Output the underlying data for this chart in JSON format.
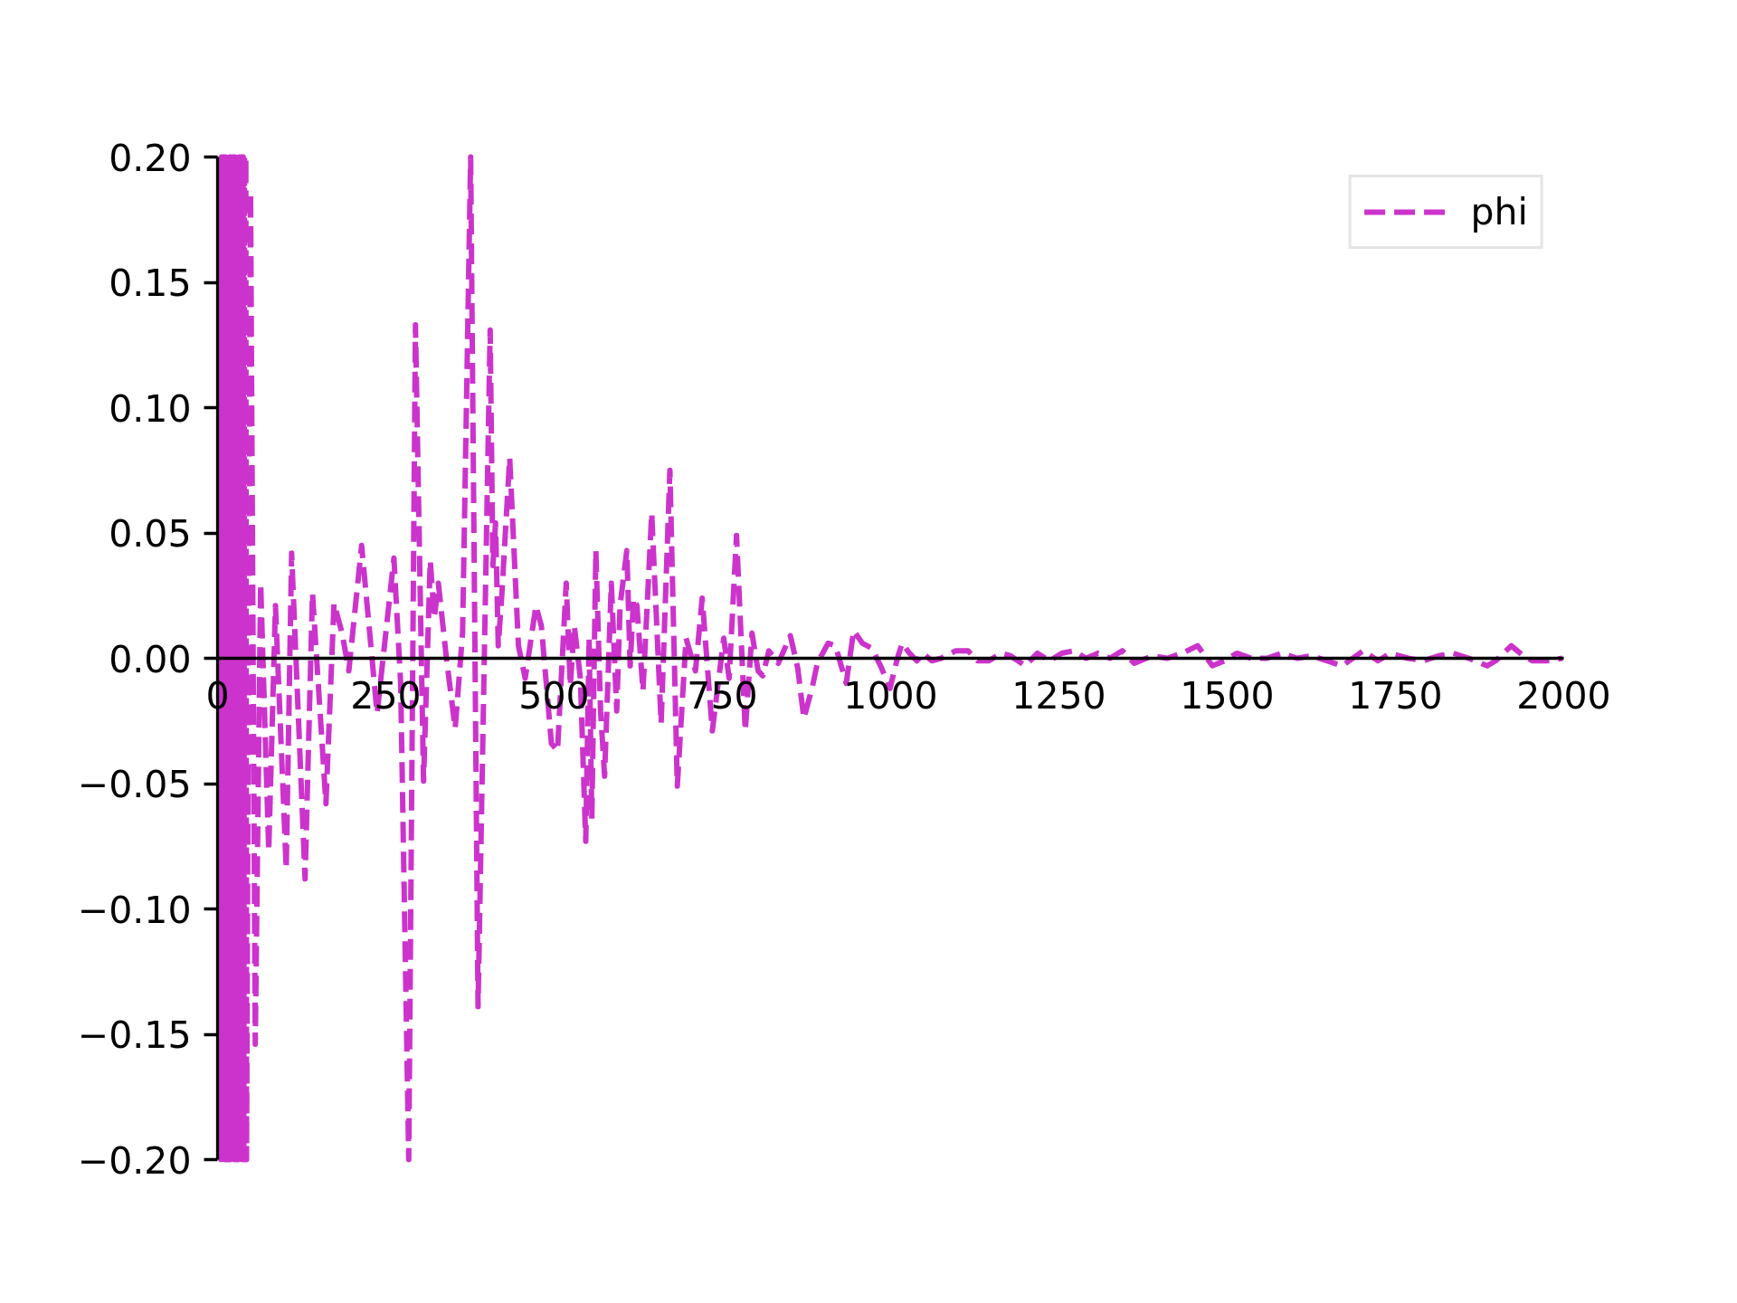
{
  "chart_data": {
    "type": "line",
    "x": [
      4,
      5,
      6,
      7,
      8,
      9,
      10,
      11,
      12,
      13,
      14,
      15,
      16,
      17,
      18,
      19,
      20,
      21,
      22,
      23,
      24,
      25,
      26,
      27,
      28,
      29,
      30,
      31,
      32,
      33,
      34,
      35,
      36,
      37,
      38,
      39,
      40,
      41,
      42,
      43,
      49,
      56,
      64,
      76,
      86,
      102,
      110,
      130,
      141,
      161,
      173,
      185,
      195,
      214,
      237,
      262,
      272,
      284,
      294,
      306,
      316,
      322,
      328,
      340,
      353,
      364,
      376,
      387,
      405,
      409,
      413,
      417,
      422,
      434,
      447,
      457,
      473,
      481,
      496,
      505,
      518,
      524,
      530,
      539,
      547,
      552,
      556,
      562,
      569,
      575,
      585,
      593,
      598,
      608,
      613,
      618,
      623,
      632,
      645,
      659,
      672,
      683,
      696,
      710,
      720,
      735,
      752,
      760,
      771,
      784,
      794,
      803,
      810,
      819,
      833,
      851,
      862,
      871,
      884,
      891,
      907,
      918,
      934,
      945,
      958,
      972,
      985,
      999,
      1010,
      1017,
      1028,
      1039,
      1048,
      1061,
      1075,
      1097,
      1115,
      1129,
      1146,
      1164,
      1178,
      1200,
      1218,
      1236,
      1254,
      1272,
      1290,
      1308,
      1326,
      1344,
      1362,
      1389,
      1411,
      1433,
      1456,
      1478,
      1496,
      1514,
      1536,
      1559,
      1581,
      1604,
      1626,
      1648,
      1671,
      1702,
      1724,
      1742,
      1769,
      1792,
      1814,
      1836,
      1859,
      1886,
      1899,
      1922,
      1940,
      1953,
      1975,
      1998
    ],
    "series": [
      {
        "name": "phi",
        "color": "#cc33cc",
        "values": [
          0.2,
          -0.2,
          0.2,
          -0.2,
          0.2,
          -0.2,
          0.2,
          -0.2,
          0.2,
          -0.2,
          0.2,
          -0.2,
          0.2,
          -0.2,
          0.2,
          -0.2,
          0.2,
          -0.2,
          0.2,
          -0.2,
          0.2,
          -0.2,
          0.2,
          -0.2,
          0.2,
          -0.2,
          0.2,
          -0.2,
          0.2,
          -0.2,
          0.2,
          -0.2,
          0.2,
          -0.2,
          0.2,
          -0.2,
          0.2,
          -0.2,
          0.2,
          -0.2,
          0.186,
          -0.154,
          0.03,
          -0.077,
          0.021,
          -0.084,
          0.042,
          -0.088,
          0.026,
          -0.058,
          0.022,
          0.01,
          -0.005,
          0.045,
          -0.022,
          0.04,
          -0.01,
          -0.2,
          0.133,
          -0.049,
          0.039,
          0.016,
          0.03,
          0.0,
          -0.028,
          0.01,
          0.2,
          -0.139,
          0.131,
          0.037,
          0.054,
          0.005,
          0.024,
          0.08,
          0.005,
          -0.008,
          0.021,
          0.013,
          -0.034,
          -0.037,
          0.03,
          -0.011,
          0.013,
          -0.008,
          -0.073,
          0.008,
          -0.064,
          0.043,
          -0.021,
          -0.047,
          0.03,
          -0.021,
          0.021,
          0.043,
          -0.003,
          0.024,
          0.021,
          -0.013,
          0.058,
          -0.026,
          0.075,
          -0.051,
          0.008,
          -0.005,
          0.024,
          -0.029,
          0.008,
          -0.008,
          0.049,
          -0.029,
          0.01,
          -0.005,
          -0.007,
          0.003,
          -0.002,
          0.009,
          -0.004,
          -0.024,
          -0.011,
          -0.002,
          0.006,
          0.005,
          -0.01,
          0.011,
          0.006,
          0.004,
          -0.003,
          -0.012,
          0.0,
          0.006,
          0.002,
          -0.001,
          0.002,
          -0.001,
          0.0,
          0.003,
          0.003,
          -0.001,
          -0.001,
          0.002,
          0.001,
          -0.003,
          0.002,
          -0.001,
          0.002,
          0.003,
          0.0,
          0.002,
          0.0,
          0.003,
          -0.002,
          0.001,
          0.0,
          0.002,
          0.005,
          -0.003,
          -0.001,
          0.002,
          0.0,
          0.0,
          0.002,
          0.0,
          0.001,
          -0.001,
          -0.003,
          0.003,
          -0.001,
          0.002,
          0.0,
          -0.001,
          0.001,
          0.002,
          0.0,
          -0.003,
          -0.001,
          0.005,
          0.001,
          -0.001,
          -0.001,
          0.0
        ]
      }
    ],
    "xlim": [
      0,
      2000
    ],
    "ylim": [
      -0.2,
      0.2
    ],
    "xticks": [
      0,
      250,
      500,
      750,
      1000,
      1250,
      1500,
      1750,
      2000
    ],
    "yticks": [
      {
        "value": -0.2,
        "label": "−0.20"
      },
      {
        "value": -0.15,
        "label": "−0.15"
      },
      {
        "value": -0.1,
        "label": "−0.10"
      },
      {
        "value": -0.05,
        "label": "−0.05"
      },
      {
        "value": 0,
        "label": "0.00"
      },
      {
        "value": 0.05,
        "label": "0.05"
      },
      {
        "value": 0.1,
        "label": "0.10"
      },
      {
        "value": 0.15,
        "label": "0.15"
      },
      {
        "value": 0.2,
        "label": "0.20"
      }
    ],
    "legend": "top right",
    "line_style": "dashed"
  }
}
